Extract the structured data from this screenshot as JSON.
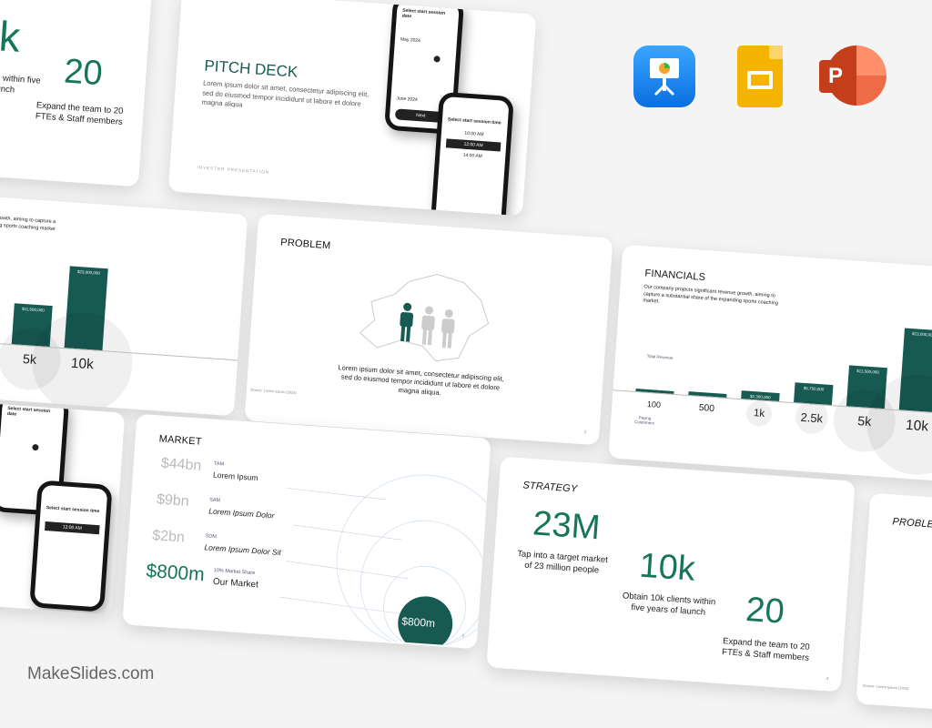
{
  "brand": "MakeSlides.com",
  "app_icons": [
    {
      "name": "keynote-icon",
      "color": "#1f8ff0"
    },
    {
      "name": "google-slides-icon",
      "color": "#f5b400"
    },
    {
      "name": "powerpoint-icon",
      "color": "#d24726"
    }
  ],
  "strategy": {
    "title": "STRATEGY",
    "stats": [
      {
        "value": "23M",
        "text": "Tap into a target market of 23 million people"
      },
      {
        "value": "10k",
        "text": "Obtain 10k clients within five years of launch"
      },
      {
        "value": "20",
        "text": "Expand the team to 20 FTEs & Staff members"
      }
    ],
    "page": "4"
  },
  "pitch": {
    "title": "PITCH DECK",
    "body": "Lorem ipsum dolor sit amet, consectetur adipiscing elit, sed do eiusmod tempor incididunt ut labore et dolore magna aliqua",
    "footer": "INVESTOR  PRESENTATION",
    "phone1": {
      "heading": "Select start session date",
      "month1": "May 2024",
      "month2": "June 2024",
      "button": "Next"
    },
    "phone2": {
      "heading": "Select start session time",
      "slots": [
        "10:00 AM",
        "12:00 AM",
        "14:00 AM"
      ]
    }
  },
  "financials": {
    "title": "FINANCIALS",
    "body": "Our company projects significant revenue growth, aiming to capture a substantial share of the expanding sports coaching market.",
    "revenue_label": "Total Revenue",
    "customers_label": "Paying Customers",
    "customers": [
      "100",
      "500",
      "1k",
      "2.5k",
      "5k",
      "10k"
    ],
    "revenue": [
      230000,
      1150000,
      2300000,
      5750000,
      11500000,
      23000000
    ],
    "revenue_labels": [
      "$230,000",
      "$1,150,000",
      "$2,300,000",
      "$5,750,000",
      "$11,500,000",
      "$23,000,000"
    ],
    "bar_color": "#175a52"
  },
  "problem": {
    "title": "PROBLEM",
    "body": "Lorem ipsum dolor sit amet, consectetur adipiscing elit, sed do eiusmod tempor incididunt ut labore et dolore magna aliqua.",
    "source": "Source: Lorem Ipsum (2024)",
    "page": "2"
  },
  "market": {
    "title": "MARKET",
    "rows": [
      {
        "value": "$44bn",
        "tag": "TAM",
        "label": "Lorem Ipsum"
      },
      {
        "value": "$9bn",
        "tag": "SAM",
        "label": "Lorem Ipsum Dolor"
      },
      {
        "value": "$2bn",
        "tag": "SOM",
        "label": "Lorem Ipsum Dolor Sit"
      },
      {
        "value": "$800m",
        "tag": "10% Market Share",
        "label": "Our Market"
      }
    ],
    "circle_value": "$800m",
    "page": "5"
  }
}
